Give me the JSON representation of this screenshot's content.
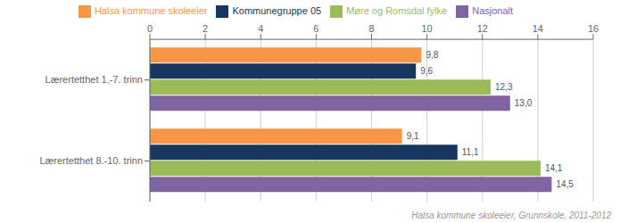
{
  "chart_data": {
    "type": "bar",
    "orientation": "horizontal",
    "categories": [
      "Lærertetthet 1.-7. trinn",
      "Lærertetthet 8.-10. trinn"
    ],
    "series": [
      {
        "name": "Halsa kommune skoleeier",
        "color": "#f79646",
        "values": [
          9.8,
          9.1
        ],
        "value_labels": [
          "9,8",
          "9,1"
        ]
      },
      {
        "name": "Kommunegruppe 05",
        "color": "#17375e",
        "values": [
          9.6,
          11.1
        ],
        "value_labels": [
          "9,6",
          "11,1"
        ]
      },
      {
        "name": "Møre og Romsdal fylke",
        "color": "#9bbb59",
        "values": [
          12.3,
          14.1
        ],
        "value_labels": [
          "12,3",
          "14,1"
        ]
      },
      {
        "name": "Nasjonalt",
        "color": "#8064a2",
        "values": [
          13.0,
          14.5
        ],
        "value_labels": [
          "13,0",
          "14,5"
        ]
      }
    ],
    "xlim": [
      0,
      16
    ],
    "xticks": [
      0,
      2,
      4,
      6,
      8,
      10,
      12,
      14,
      16
    ],
    "grid": true,
    "legend": "top",
    "data_labels": true,
    "annotations": [
      "Halsa kommune skoleeier, Grunnskole, 2011-2012"
    ]
  }
}
